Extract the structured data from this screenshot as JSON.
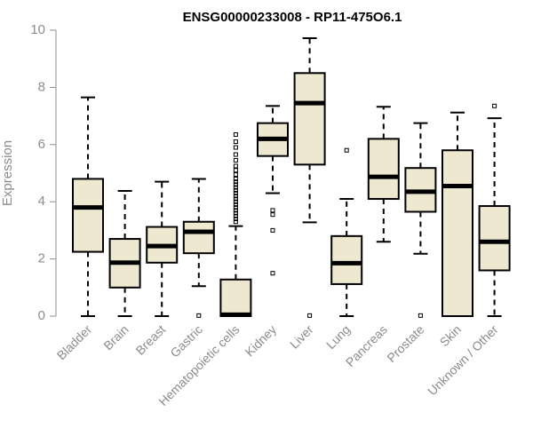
{
  "chart_data": {
    "type": "boxplot",
    "title": "ENSG00000233008 - RP11-475O6.1",
    "xlabel": "",
    "ylabel": "Expression",
    "ylim": [
      0,
      10
    ],
    "yticks": [
      0,
      2,
      4,
      6,
      8,
      10
    ],
    "box_fill": "#ede8cf",
    "categories": [
      "Bladder",
      "Brain",
      "Breast",
      "Gastric",
      "Hematopoietic cells",
      "Kidney",
      "Liver",
      "Lung",
      "Pancreas",
      "Prostate",
      "Skin",
      "Unknown / Other"
    ],
    "boxes": [
      {
        "name": "Bladder",
        "whisker_low": 0,
        "q1": 2.25,
        "median": 3.8,
        "q3": 4.8,
        "whisker_high": 7.65,
        "outliers": []
      },
      {
        "name": "Brain",
        "whisker_low": 0,
        "q1": 1.0,
        "median": 1.87,
        "q3": 2.7,
        "whisker_high": 4.38,
        "outliers": []
      },
      {
        "name": "Breast",
        "whisker_low": 0,
        "q1": 1.87,
        "median": 2.45,
        "q3": 3.12,
        "whisker_high": 4.7,
        "outliers": []
      },
      {
        "name": "Gastric",
        "whisker_low": 1.05,
        "q1": 2.2,
        "median": 2.95,
        "q3": 3.3,
        "whisker_high": 4.8,
        "outliers": [
          0.02
        ]
      },
      {
        "name": "Hematopoietic cells",
        "whisker_low": 0,
        "q1": 0,
        "median": 0.05,
        "q3": 1.28,
        "whisker_high": 3.15,
        "outliers": [
          3.3,
          3.4,
          3.5,
          3.6,
          3.7,
          3.8,
          3.9,
          4.0,
          4.1,
          4.2,
          4.3,
          4.4,
          4.5,
          4.6,
          4.7,
          4.8,
          4.95,
          5.1,
          5.25,
          5.45,
          5.65,
          5.9,
          6.1,
          6.35
        ]
      },
      {
        "name": "Kidney",
        "whisker_low": 4.3,
        "q1": 5.6,
        "median": 6.2,
        "q3": 6.75,
        "whisker_high": 7.35,
        "outliers": [
          3.7,
          3.55,
          3.0,
          1.5
        ]
      },
      {
        "name": "Liver",
        "whisker_low": 3.28,
        "q1": 5.3,
        "median": 7.45,
        "q3": 8.5,
        "whisker_high": 9.72,
        "outliers": [
          0.02
        ]
      },
      {
        "name": "Lung",
        "whisker_low": 0,
        "q1": 1.12,
        "median": 1.85,
        "q3": 2.8,
        "whisker_high": 4.1,
        "outliers": [
          5.8
        ]
      },
      {
        "name": "Pancreas",
        "whisker_low": 2.6,
        "q1": 4.1,
        "median": 4.87,
        "q3": 6.2,
        "whisker_high": 7.32,
        "outliers": []
      },
      {
        "name": "Prostate",
        "whisker_low": 2.18,
        "q1": 3.65,
        "median": 4.35,
        "q3": 5.18,
        "whisker_high": 6.75,
        "outliers": [
          0.02
        ]
      },
      {
        "name": "Skin",
        "whisker_low": 0,
        "q1": 0,
        "median": 4.55,
        "q3": 5.8,
        "whisker_high": 7.12,
        "outliers": []
      },
      {
        "name": "Unknown / Other",
        "whisker_low": 0,
        "q1": 1.6,
        "median": 2.6,
        "q3": 3.85,
        "whisker_high": 6.92,
        "outliers": [
          7.35
        ]
      }
    ]
  }
}
